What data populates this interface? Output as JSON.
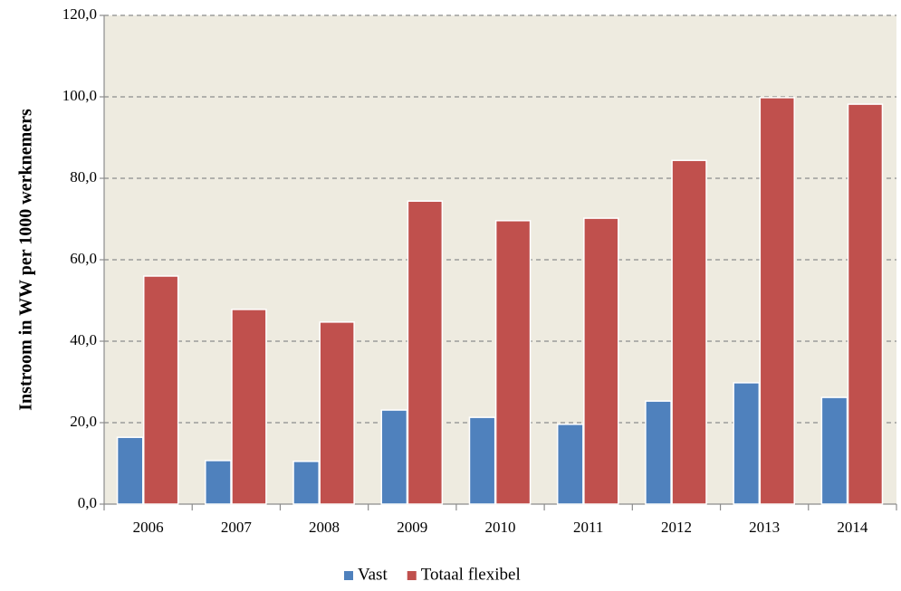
{
  "chart_data": {
    "type": "bar",
    "y_label": "Instroom in WW per 1000 werknemers",
    "categories": [
      "2006",
      "2007",
      "2008",
      "2009",
      "2010",
      "2011",
      "2012",
      "2013",
      "2014"
    ],
    "series": [
      {
        "name": "Vast",
        "color": "#4f81bd",
        "values": [
          16.4,
          10.7,
          10.5,
          23.1,
          21.3,
          19.6,
          25.3,
          29.8,
          26.2
        ]
      },
      {
        "name": "Totaal flexibel",
        "color": "#c0504d",
        "values": [
          56.0,
          47.8,
          44.7,
          74.4,
          69.6,
          70.2,
          84.4,
          99.8,
          98.2
        ]
      }
    ],
    "ylim": [
      0,
      120
    ],
    "yticks": [
      {
        "value": 0,
        "label": "0,0"
      },
      {
        "value": 20,
        "label": "20,0"
      },
      {
        "value": 40,
        "label": "40,0"
      },
      {
        "value": 60,
        "label": "60,0"
      },
      {
        "value": 80,
        "label": "80,0"
      },
      {
        "value": 100,
        "label": "100,0"
      },
      {
        "value": 120,
        "label": "120,0"
      }
    ],
    "grid": true,
    "legend": "bottom"
  }
}
